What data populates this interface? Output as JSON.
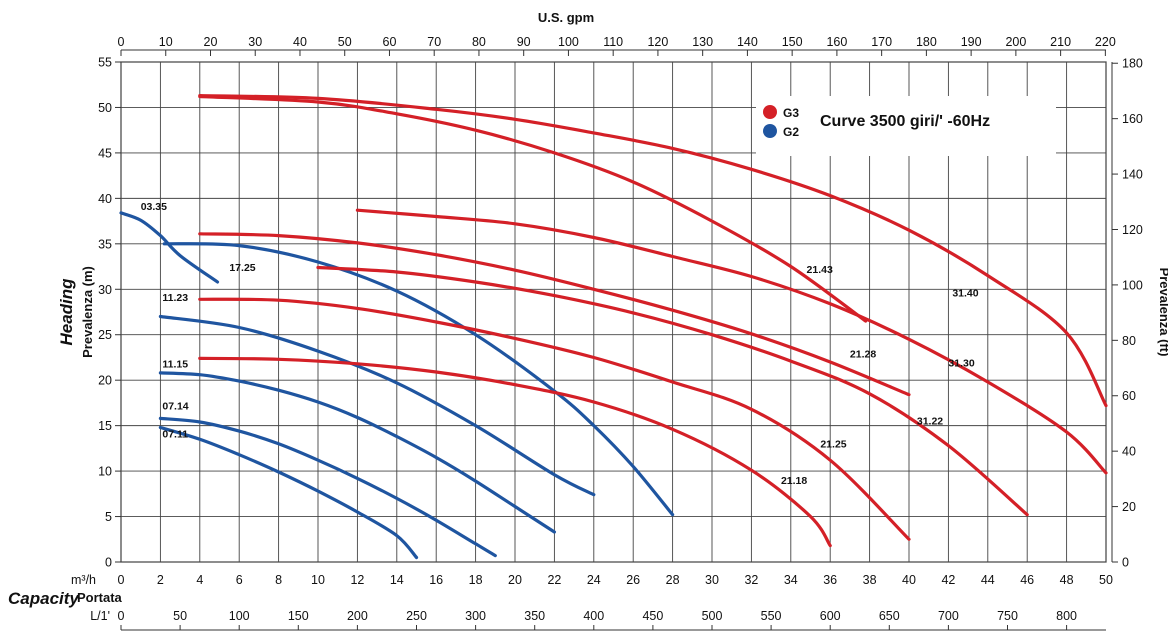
{
  "chart_data": {
    "type": "line",
    "title": "Curve 3500 giri/' -60Hz",
    "top_axis": {
      "label": "U.S. gpm",
      "ticks": [
        "0",
        "10",
        "20",
        "30",
        "40",
        "50",
        "60",
        "70",
        "80",
        "90",
        "100",
        "110",
        "120",
        "130",
        "140",
        "150",
        "160",
        "170",
        "180",
        "190",
        "200",
        "210",
        "220"
      ]
    },
    "bottom_axis_1": {
      "unit": "m³/h",
      "ticks": [
        "0",
        "2",
        "4",
        "6",
        "8",
        "10",
        "12",
        "14",
        "16",
        "18",
        "20",
        "22",
        "24",
        "26",
        "28",
        "30",
        "32",
        "34",
        "36",
        "38",
        "40",
        "42",
        "44",
        "46",
        "48",
        "50"
      ]
    },
    "bottom_axis_2": {
      "unit": "L/1'",
      "ticks": [
        "0",
        "50",
        "100",
        "150",
        "200",
        "250",
        "300",
        "350",
        "400",
        "450",
        "500",
        "550",
        "600",
        "650",
        "700",
        "750",
        "800"
      ]
    },
    "capacity_label": "Capacity",
    "portata_label": "Portata",
    "left_axis": {
      "label": "Prevalenza (m)",
      "title": "Heading",
      "ticks": [
        "0",
        "5",
        "10",
        "15",
        "20",
        "25",
        "30",
        "35",
        "40",
        "45",
        "50",
        "55"
      ]
    },
    "right_axis": {
      "label": "Prevalenza (ft)",
      "ticks": [
        "0",
        "20",
        "40",
        "60",
        "80",
        "100",
        "120",
        "140",
        "160",
        "180"
      ]
    },
    "xlim": [
      0,
      50
    ],
    "ylim": [
      0,
      55
    ],
    "grid": true,
    "legend": {
      "placement": "top-right",
      "entries": [
        {
          "name": "G3",
          "color": "#d42027"
        },
        {
          "name": "G2",
          "color": "#1f55a0"
        }
      ]
    },
    "series": [
      {
        "name": "03.35",
        "group": "G2",
        "x": [
          0,
          1,
          2,
          3,
          4.9
        ],
        "y": [
          38.4,
          37.6,
          35.9,
          33.7,
          30.8
        ],
        "label_at": [
          1,
          38.7
        ]
      },
      {
        "name": "17.25",
        "group": "G2",
        "x": [
          2.2,
          6,
          10,
          14,
          18,
          22,
          24,
          26,
          28
        ],
        "y": [
          35,
          34.8,
          33,
          29.8,
          25,
          18.8,
          15,
          10.5,
          5.2
        ],
        "label_at": [
          5.5,
          32
        ]
      },
      {
        "name": "11.23",
        "group": "G2",
        "x": [
          2,
          6,
          10,
          14,
          18,
          22,
          24
        ],
        "y": [
          27,
          25.8,
          23.2,
          19.7,
          15,
          9.6,
          7.4
        ],
        "label_at": [
          2.1,
          28.7
        ]
      },
      {
        "name": "11.15",
        "group": "G2",
        "x": [
          2,
          4,
          6,
          8,
          10,
          12,
          14,
          16,
          18,
          20,
          22
        ],
        "y": [
          20.8,
          20.6,
          19.9,
          18.9,
          17.6,
          15.9,
          13.8,
          11.5,
          8.9,
          6.1,
          3.3
        ],
        "label_at": [
          2.1,
          21.4
        ]
      },
      {
        "name": "07.14",
        "group": "G2",
        "x": [
          2,
          4,
          6,
          8,
          10,
          12,
          14,
          16,
          18,
          19
        ],
        "y": [
          15.8,
          15.4,
          14.4,
          13,
          11.2,
          9.2,
          7,
          4.6,
          2,
          0.7
        ],
        "label_at": [
          2.1,
          16.8
        ]
      },
      {
        "name": "07.11",
        "group": "G2",
        "x": [
          2,
          4,
          6,
          8,
          10,
          12,
          14,
          15
        ],
        "y": [
          14.8,
          13.5,
          11.8,
          9.9,
          7.8,
          5.5,
          2.9,
          0.5
        ],
        "label_at": [
          2.1,
          13.7
        ]
      },
      {
        "name": "21.43",
        "group": "G3",
        "x": [
          4,
          10,
          14,
          18,
          22,
          26,
          30,
          34,
          37.8
        ],
        "y": [
          51.2,
          50.6,
          49.3,
          47.5,
          45,
          41.8,
          37.5,
          32.5,
          26.5
        ],
        "label_at": [
          34.8,
          31.8
        ]
      },
      {
        "name": "31.40",
        "group": "G3",
        "x": [
          4,
          10,
          16,
          20,
          24,
          28,
          32,
          36,
          40,
          44,
          48,
          50
        ],
        "y": [
          51.3,
          51,
          49.8,
          48.7,
          47.2,
          45.5,
          43.2,
          40.3,
          36.5,
          31.5,
          25.2,
          17.2
        ],
        "label_at": [
          42.2,
          29.2
        ]
      },
      {
        "name": "31.30",
        "group": "G3",
        "x": [
          12,
          16,
          20,
          24,
          28,
          32,
          36,
          40,
          44,
          48,
          50
        ],
        "y": [
          38.7,
          38,
          37.2,
          35.7,
          33.6,
          31.4,
          28.4,
          24.5,
          19.8,
          14.3,
          9.8
        ],
        "label_at": [
          42,
          21.5
        ]
      },
      {
        "name": "21.28",
        "group": "G3",
        "x": [
          4,
          8,
          12,
          16,
          20,
          24,
          28,
          32,
          36,
          40
        ],
        "y": [
          36.1,
          35.9,
          35.1,
          33.8,
          32.1,
          30,
          27.7,
          25.1,
          22,
          18.4
        ],
        "label_at": [
          37,
          22.5
        ]
      },
      {
        "name": "31.22",
        "group": "G3",
        "x": [
          10,
          14,
          18,
          22,
          26,
          30,
          34,
          38,
          42,
          46
        ],
        "y": [
          32.4,
          31.9,
          30.8,
          29.3,
          27.4,
          25,
          22.1,
          18.5,
          12.8,
          5.2
        ],
        "label_at": [
          40.4,
          15.1
        ]
      },
      {
        "name": "21.25",
        "group": "G3",
        "x": [
          4,
          8,
          12,
          16,
          20,
          24,
          28,
          32,
          36,
          40
        ],
        "y": [
          28.9,
          28.8,
          27.9,
          26.4,
          24.6,
          22.5,
          19.8,
          16.8,
          11.2,
          2.5
        ],
        "label_at": [
          35.5,
          12.6
        ]
      },
      {
        "name": "21.18",
        "group": "G3",
        "x": [
          4,
          8,
          12,
          16,
          20,
          24,
          28,
          32,
          35,
          36
        ],
        "y": [
          22.4,
          22.3,
          21.8,
          20.9,
          19.5,
          17.6,
          14.6,
          10.1,
          5,
          1.8
        ],
        "label_at": [
          33.5,
          8.6
        ]
      }
    ]
  }
}
